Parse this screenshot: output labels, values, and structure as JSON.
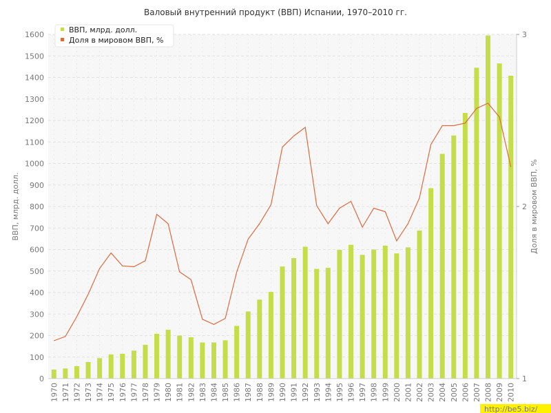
{
  "chart_data": {
    "type": "bar",
    "title": "Валовый внутренний продукт (ВВП) Испании, 1970–2010 гг.",
    "ylabel_left": "ВВП, млрд. долл.",
    "ylabel_right": "Доля в мировом ВВП, %",
    "ylim_left": [
      0,
      1600
    ],
    "ylim_right": [
      1,
      3
    ],
    "yticks_left": [
      0,
      100,
      200,
      300,
      400,
      500,
      600,
      700,
      800,
      900,
      1000,
      1100,
      1200,
      1300,
      1400,
      1500,
      1600
    ],
    "yticks_right": [
      1,
      2,
      3
    ],
    "grid": true,
    "legend_position": "top-left",
    "categories": [
      "1970",
      "1971",
      "1972",
      "1973",
      "1974",
      "1975",
      "1976",
      "1977",
      "1978",
      "1979",
      "1980",
      "1981",
      "1982",
      "1983",
      "1984",
      "1985",
      "1986",
      "1987",
      "1988",
      "1989",
      "1990",
      "1991",
      "1992",
      "1993",
      "1994",
      "1995",
      "1996",
      "1997",
      "1998",
      "1999",
      "2000",
      "2001",
      "2002",
      "2003",
      "2004",
      "2005",
      "2006",
      "2007",
      "2008",
      "2009",
      "2010"
    ],
    "series": [
      {
        "name": "ВВП, млрд. долл.",
        "type": "bar",
        "axis": "left",
        "color": "#c5dd4a",
        "values": [
          42,
          47,
          58,
          77,
          95,
          112,
          115,
          130,
          157,
          208,
          227,
          200,
          192,
          168,
          168,
          178,
          245,
          312,
          367,
          403,
          521,
          560,
          613,
          510,
          515,
          598,
          622,
          575,
          600,
          618,
          582,
          610,
          688,
          885,
          1045,
          1130,
          1235,
          1445,
          1595,
          1465,
          1408
        ]
      },
      {
        "name": "Доля в мировом ВВП, %",
        "type": "line",
        "axis": "right",
        "color": "#dd6a3c",
        "values": [
          1.22,
          1.245,
          1.36,
          1.49,
          1.64,
          1.73,
          1.655,
          1.65,
          1.685,
          1.955,
          1.9,
          1.62,
          1.575,
          1.345,
          1.315,
          1.35,
          1.62,
          1.81,
          1.9,
          2.01,
          2.345,
          2.41,
          2.46,
          2.005,
          1.9,
          1.99,
          2.03,
          1.88,
          1.99,
          1.97,
          1.8,
          1.9,
          2.05,
          2.36,
          2.47,
          2.47,
          2.485,
          2.57,
          2.6,
          2.52,
          2.23
        ]
      }
    ]
  },
  "watermark": "http://be5.biz/"
}
